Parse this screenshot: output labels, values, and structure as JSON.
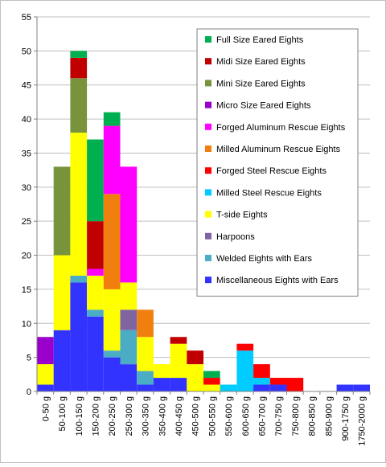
{
  "chart_data": {
    "type": "bar",
    "stacked": true,
    "categories": [
      "0-50 g",
      "50-100 g",
      "100-150 g",
      "150-200 g",
      "200-250 g",
      "250-300 g",
      "300-350 g",
      "350-400 g",
      "400-450 g",
      "450-500 g",
      "500-550 g",
      "550-600 g",
      "600-650 g",
      "650-700 g",
      "700-750 g",
      "750-800 g",
      "800-850 g",
      "850-900 g",
      "900-1750 g",
      "1750-2000 g"
    ],
    "ylim": [
      0,
      55
    ],
    "yticks": [
      0,
      5,
      10,
      15,
      20,
      25,
      30,
      35,
      40,
      45,
      50,
      55
    ],
    "grid": true,
    "legend_position": "top-right",
    "series": [
      {
        "name": "Miscellaneous Eights with Ears",
        "color": "#3333ff",
        "values": [
          1,
          9,
          16,
          11,
          5,
          4,
          1,
          2,
          2,
          0,
          0,
          0,
          0,
          1,
          1,
          0,
          0,
          0,
          1,
          1
        ]
      },
      {
        "name": "Welded Eights with Ears",
        "color": "#4bacc6",
        "values": [
          0,
          0,
          1,
          1,
          1,
          5,
          2,
          0,
          0,
          0,
          0,
          0,
          0,
          0,
          0,
          0,
          0,
          0,
          0,
          0
        ]
      },
      {
        "name": "Harpoons",
        "color": "#8064a2",
        "values": [
          0,
          0,
          0,
          0,
          0,
          3,
          0,
          0,
          0,
          0,
          0,
          0,
          0,
          0,
          0,
          0,
          0,
          0,
          0,
          0
        ]
      },
      {
        "name": "T-side Eights",
        "color": "#ffff00",
        "values": [
          3,
          11,
          21,
          5,
          9,
          4,
          5,
          2,
          5,
          4,
          1,
          0,
          0,
          0,
          0,
          0,
          0,
          0,
          0,
          0
        ]
      },
      {
        "name": "Milled Steel Rescue Eights",
        "color": "#00ccff",
        "values": [
          0,
          0,
          0,
          0,
          0,
          0,
          0,
          0,
          0,
          0,
          0,
          1,
          6,
          1,
          0,
          0,
          0,
          0,
          0,
          0
        ]
      },
      {
        "name": "Forged Steel Rescue Eights",
        "color": "#ff0000",
        "values": [
          0,
          0,
          0,
          0,
          0,
          0,
          0,
          0,
          0,
          0,
          1,
          0,
          1,
          2,
          1,
          2,
          0,
          0,
          0,
          0
        ]
      },
      {
        "name": "Milled Aluminum Rescue Eights",
        "color": "#f07f10",
        "values": [
          0,
          0,
          0,
          0,
          14,
          0,
          4,
          0,
          0,
          0,
          0,
          0,
          0,
          0,
          0,
          0,
          0,
          0,
          0,
          0
        ]
      },
      {
        "name": "Forged Aluminum Rescue Eights",
        "color": "#ff00ff",
        "values": [
          0,
          0,
          0,
          1,
          10,
          17,
          0,
          0,
          0,
          0,
          0,
          0,
          0,
          0,
          0,
          0,
          0,
          0,
          0,
          0
        ]
      },
      {
        "name": "Micro Size Eared Eights",
        "color": "#9900cc",
        "values": [
          4,
          0,
          0,
          0,
          0,
          0,
          0,
          0,
          0,
          0,
          0,
          0,
          0,
          0,
          0,
          0,
          0,
          0,
          0,
          0
        ]
      },
      {
        "name": "Mini Size Eared Eights",
        "color": "#77933c",
        "values": [
          0,
          13,
          8,
          0,
          0,
          0,
          0,
          0,
          0,
          0,
          0,
          0,
          0,
          0,
          0,
          0,
          0,
          0,
          0,
          0
        ]
      },
      {
        "name": "Midi Size Eared Eights",
        "color": "#c00000",
        "values": [
          0,
          0,
          3,
          7,
          0,
          0,
          0,
          0,
          1,
          2,
          0,
          0,
          0,
          0,
          0,
          0,
          0,
          0,
          0,
          0
        ]
      },
      {
        "name": "Full Size Eared Eights",
        "color": "#00b050",
        "values": [
          0,
          0,
          1,
          12,
          2,
          0,
          0,
          0,
          0,
          0,
          1,
          0,
          0,
          0,
          0,
          0,
          0,
          0,
          0,
          0
        ]
      }
    ]
  }
}
